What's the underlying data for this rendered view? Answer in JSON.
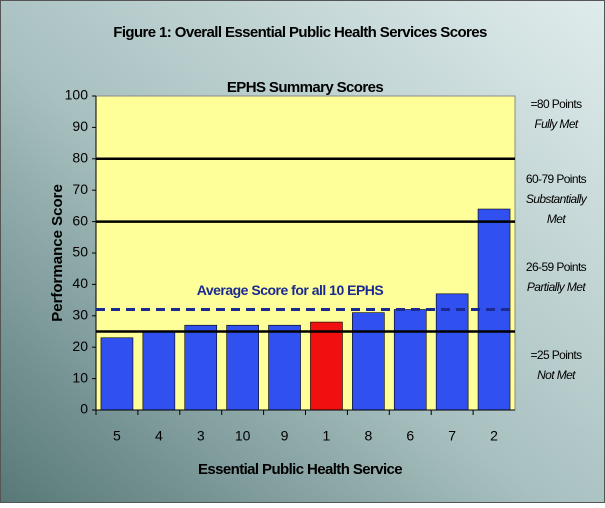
{
  "chart_data": {
    "type": "bar",
    "title": "Figure 1:  Overall Essential Public Health Services Scores",
    "subtitle": "EPHS Summary Scores",
    "xlabel": "Essential Public Health Service",
    "ylabel": "Performance Score",
    "categories": [
      "5",
      "4",
      "3",
      "10",
      "9",
      "1",
      "8",
      "6",
      "7",
      "2"
    ],
    "values": [
      23,
      25,
      27,
      27,
      27,
      28,
      31,
      32,
      37,
      64
    ],
    "colors": [
      "#3050f0",
      "#3050f0",
      "#3050f0",
      "#3050f0",
      "#3050f0",
      "#f01010",
      "#3050f0",
      "#3050f0",
      "#3050f0",
      "#3050f0"
    ],
    "ylim": [
      0,
      100
    ],
    "yticks": [
      0,
      10,
      20,
      30,
      40,
      50,
      60,
      70,
      80,
      90,
      100
    ],
    "reference_lines": [
      {
        "value": 80,
        "color": "#000000"
      },
      {
        "value": 60,
        "color": "#000000"
      },
      {
        "value": 25,
        "color": "#000000"
      }
    ],
    "average": {
      "label": "Average Score for all 10 EPHS",
      "value": 32,
      "color": "#1a2a90"
    },
    "annotations": [
      [
        "=80 Points",
        "Fully Met"
      ],
      [
        "60-79 Points",
        "Substantially",
        "Met"
      ],
      [
        "26-59 Points",
        "Partially Met"
      ],
      [
        "=25 Points",
        "Not Met"
      ]
    ]
  }
}
